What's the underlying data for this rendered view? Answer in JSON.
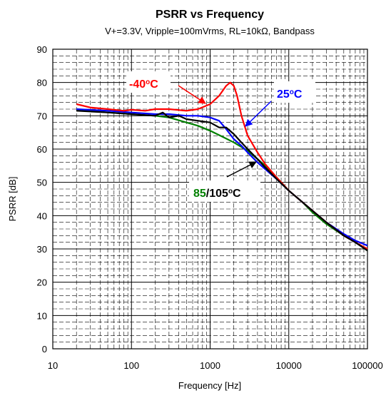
{
  "chart_data": {
    "type": "line",
    "title": "PSRR vs Frequency",
    "subtitle": "V+=3.3V, Vripple=100mVrms, RL=10kΩ, Bandpass",
    "xlabel": "Frequency [Hz]",
    "ylabel": "PSRR [dB]",
    "xscale": "log",
    "xlim": [
      10,
      100000
    ],
    "ylim": [
      0,
      90
    ],
    "xticks": [
      10,
      100,
      1000,
      10000,
      100000
    ],
    "xtick_labels": [
      "10",
      "100",
      "1000",
      "10000",
      "100000"
    ],
    "yticks": [
      0,
      10,
      20,
      30,
      40,
      50,
      60,
      70,
      80,
      90
    ],
    "ytick_labels": [
      "0",
      "10",
      "20",
      "30",
      "40",
      "50",
      "60",
      "70",
      "80",
      "90"
    ],
    "grid": true,
    "series": [
      {
        "color": "#ff0000",
        "x": [
          20,
          30,
          50,
          80,
          100,
          150,
          200,
          300,
          500,
          700,
          1000,
          1300,
          1600,
          1800,
          2000,
          2200,
          2500,
          3000,
          4000,
          5000,
          7000,
          10000,
          15000,
          20000,
          30000,
          50000,
          70000,
          100000
        ],
        "y": [
          73.5,
          72.5,
          72,
          71.5,
          71.8,
          71.5,
          72,
          72,
          71.5,
          72,
          73.5,
          76,
          79,
          80,
          79,
          76,
          70,
          64,
          59,
          55.5,
          51.5,
          47.5,
          44,
          41.5,
          38,
          34,
          32,
          30
        ]
      },
      {
        "color": "#0000ff",
        "x": [
          20,
          50,
          100,
          200,
          300,
          500,
          700,
          1000,
          1300,
          1600,
          2000,
          2500,
          3000,
          4000,
          5000,
          7000,
          10000,
          15000,
          20000,
          30000,
          50000,
          70000,
          100000
        ],
        "y": [
          72,
          71.5,
          71,
          70.5,
          70.5,
          70,
          70,
          69.5,
          68.5,
          66,
          63,
          61,
          59,
          56,
          54,
          51,
          47.5,
          44,
          41.5,
          38,
          34.5,
          32.5,
          31
        ]
      },
      {
        "color": "#008000",
        "x": [
          20,
          50,
          100,
          200,
          300,
          500,
          700,
          1000,
          1500,
          2000,
          3000,
          4000,
          5000,
          7000,
          10000,
          15000,
          20000,
          30000,
          50000,
          70000,
          100000
        ],
        "y": [
          72,
          71,
          70.5,
          70,
          69.5,
          68,
          67,
          65.5,
          63.5,
          62,
          59.5,
          57,
          55,
          51.5,
          47.5,
          44,
          41,
          37.5,
          34,
          32,
          29.5
        ]
      },
      {
        "color": "#000000",
        "x": [
          20,
          50,
          100,
          200,
          250,
          300,
          400,
          500,
          700,
          1000,
          1300,
          1600,
          2000,
          2500,
          3000,
          4000,
          5000,
          7000,
          10000,
          15000,
          20000,
          30000,
          50000,
          70000,
          100000
        ],
        "y": [
          71.5,
          71,
          70.5,
          70,
          71,
          69.5,
          70,
          69,
          68.5,
          68,
          66.5,
          66.5,
          64.5,
          62,
          60,
          57,
          54.5,
          51,
          47.5,
          44,
          41.5,
          38,
          34,
          32,
          29.5
        ]
      }
    ],
    "annotations": [
      {
        "id": "ann-m40",
        "parts": [
          {
            "text": "-40",
            "color": "#ff0000"
          },
          {
            "text": "o",
            "color": "#ff0000",
            "sup": true
          },
          {
            "text": "C",
            "color": "#ff0000"
          }
        ]
      },
      {
        "id": "ann-25",
        "parts": [
          {
            "text": "25",
            "color": "#0000ff"
          },
          {
            "text": "o",
            "color": "#0000ff",
            "sup": true
          },
          {
            "text": "C",
            "color": "#0000ff"
          }
        ]
      },
      {
        "id": "ann-85",
        "parts": [
          {
            "text": "85",
            "color": "#008000"
          },
          {
            "text": "/105",
            "color": "#000000"
          },
          {
            "text": "o",
            "color": "#000000",
            "sup": true
          },
          {
            "text": "C",
            "color": "#000000"
          }
        ]
      }
    ]
  }
}
